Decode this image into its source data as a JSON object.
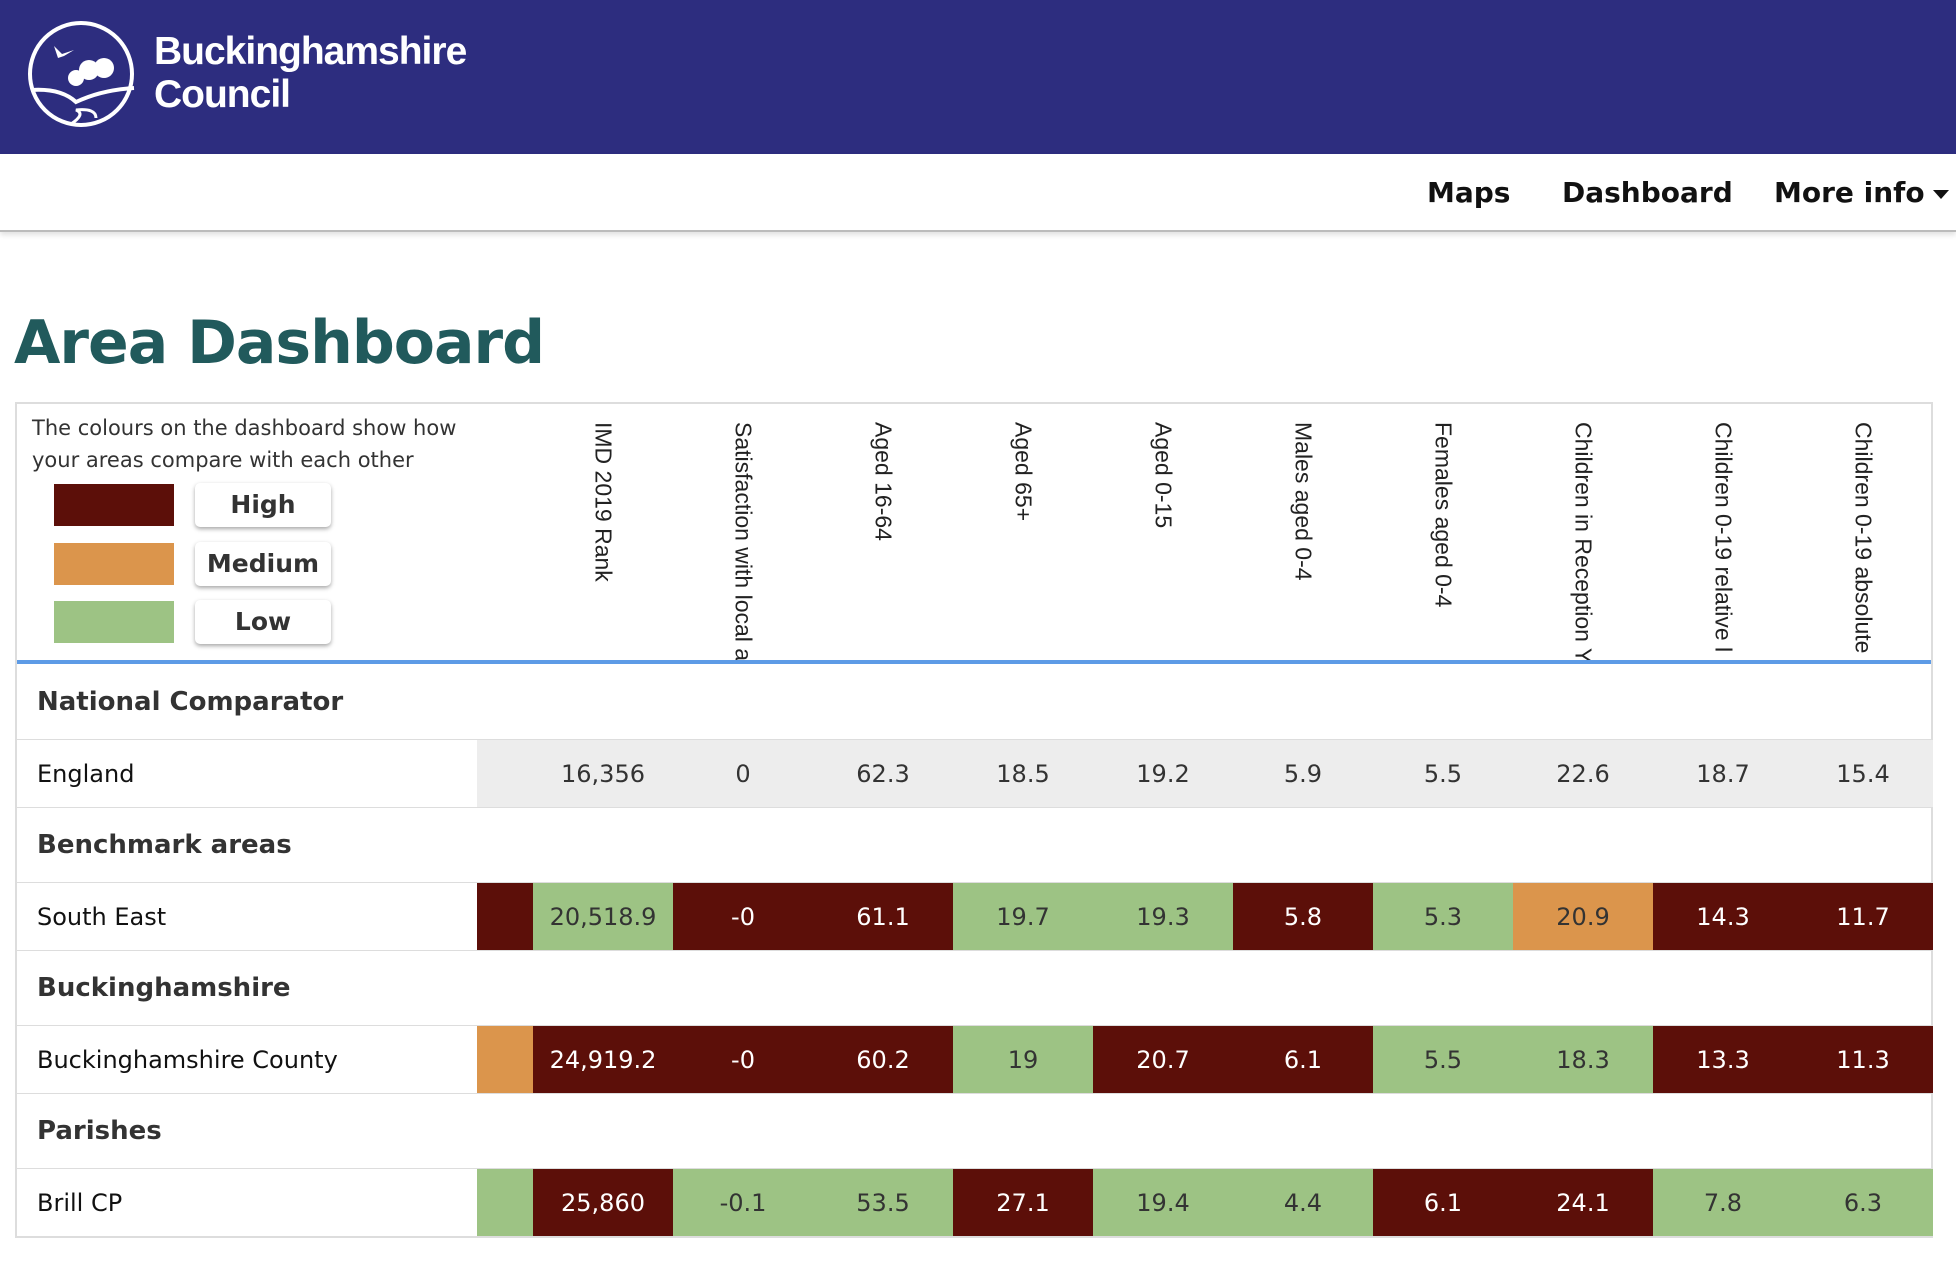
{
  "header": {
    "brand_line1": "Buckinghamshire",
    "brand_line2": "Council",
    "logo": "council-logo"
  },
  "nav": {
    "items": [
      "Maps",
      "Dashboard",
      "More info"
    ]
  },
  "page": {
    "title": "Area Dashboard"
  },
  "legend": {
    "text": "The colours on the dashboard show how your areas compare with each other",
    "items": [
      {
        "label": "High",
        "color": "#5c0f09"
      },
      {
        "label": "Medium",
        "color": "#db954c"
      },
      {
        "label": "Low",
        "color": "#9dc384"
      }
    ]
  },
  "colors": {
    "H": "#5c0f09",
    "M": "#db954c",
    "L": "#9dc384",
    "N": "#ededed"
  },
  "columns": [
    "IMD 2019 Rank",
    "Satisfaction with local a",
    "Aged 16-64",
    "Aged 65+",
    "Aged 0-15",
    "Males aged 0-4",
    "Females aged 0-4",
    "Children in Reception Y",
    "Children 0-19 relative l",
    "Children 0-19 absolute"
  ],
  "sections": [
    {
      "title": "National Comparator",
      "rows": [
        {
          "name": "England",
          "first": "N",
          "values": [
            "16,356",
            "0",
            "62.3",
            "18.5",
            "19.2",
            "5.9",
            "5.5",
            "22.6",
            "18.7",
            "15.4"
          ],
          "levels": [
            "N",
            "N",
            "N",
            "N",
            "N",
            "N",
            "N",
            "N",
            "N",
            "N"
          ]
        }
      ]
    },
    {
      "title": "Benchmark areas",
      "rows": [
        {
          "name": "South East",
          "first": "H",
          "values": [
            "20,518.9",
            "-0",
            "61.1",
            "19.7",
            "19.3",
            "5.8",
            "5.3",
            "20.9",
            "14.3",
            "11.7"
          ],
          "levels": [
            "L",
            "H",
            "H",
            "L",
            "L",
            "H",
            "L",
            "M",
            "H",
            "H"
          ]
        }
      ]
    },
    {
      "title": "Buckinghamshire",
      "rows": [
        {
          "name": "Buckinghamshire County",
          "first": "M",
          "values": [
            "24,919.2",
            "-0",
            "60.2",
            "19",
            "20.7",
            "6.1",
            "5.5",
            "18.3",
            "13.3",
            "11.3"
          ],
          "levels": [
            "H",
            "H",
            "H",
            "L",
            "H",
            "H",
            "L",
            "L",
            "H",
            "H"
          ]
        }
      ]
    },
    {
      "title": "Parishes",
      "rows": [
        {
          "name": "Brill CP",
          "first": "L",
          "values": [
            "25,860",
            "-0.1",
            "53.5",
            "27.1",
            "19.4",
            "4.4",
            "6.1",
            "24.1",
            "7.8",
            "6.3"
          ],
          "levels": [
            "H",
            "L",
            "L",
            "H",
            "L",
            "L",
            "H",
            "H",
            "L",
            "L"
          ]
        }
      ]
    }
  ]
}
